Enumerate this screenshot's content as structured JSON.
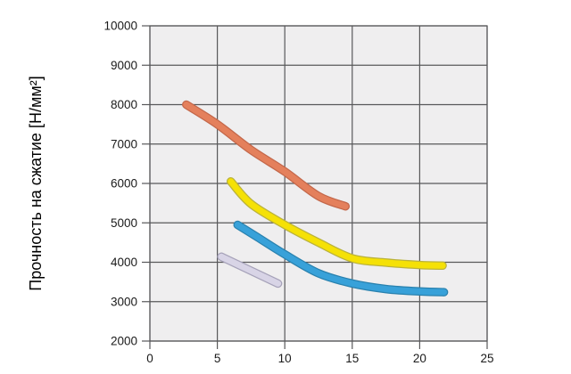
{
  "page": {
    "background": "#ffffff"
  },
  "chart_data": {
    "type": "line",
    "title": "",
    "xlabel": "",
    "ylabel": "Прочность на сжатие [Н/мм²]",
    "xlim": [
      0,
      25
    ],
    "ylim": [
      2000,
      10000
    ],
    "x_ticks": [
      0,
      5,
      10,
      15,
      20,
      25
    ],
    "y_ticks": [
      2000,
      3000,
      4000,
      5000,
      6000,
      7000,
      8000,
      9000,
      10000
    ],
    "grid": true,
    "legend_position": "none",
    "plot_background": "#efeeef",
    "grid_color": "#58585a",
    "series": [
      {
        "name": "curve-orange",
        "color": "#E4805C",
        "edge_color": "#C3674A",
        "points": [
          [
            2.7,
            8000
          ],
          [
            5,
            7500
          ],
          [
            7.5,
            6850
          ],
          [
            10,
            6300
          ],
          [
            12.5,
            5680
          ],
          [
            14.5,
            5420
          ]
        ]
      },
      {
        "name": "curve-yellow",
        "color": "#F5E106",
        "edge_color": "#BAB23B",
        "points": [
          [
            6,
            6050
          ],
          [
            7.5,
            5480
          ],
          [
            10,
            4950
          ],
          [
            12.5,
            4500
          ],
          [
            15,
            4100
          ],
          [
            17.5,
            3990
          ],
          [
            20,
            3930
          ],
          [
            21.7,
            3915
          ]
        ]
      },
      {
        "name": "curve-blue",
        "color": "#38A1D9",
        "edge_color": "#2981AE",
        "points": [
          [
            6.5,
            4950
          ],
          [
            8,
            4630
          ],
          [
            10,
            4200
          ],
          [
            12.5,
            3720
          ],
          [
            15,
            3460
          ],
          [
            17.5,
            3320
          ],
          [
            20,
            3260
          ],
          [
            21.8,
            3240
          ]
        ]
      },
      {
        "name": "curve-lavender",
        "color": "#D8D4E6",
        "edge_color": "#A6A2B9",
        "points": [
          [
            5.3,
            4140
          ],
          [
            9.5,
            3460
          ]
        ]
      }
    ]
  }
}
